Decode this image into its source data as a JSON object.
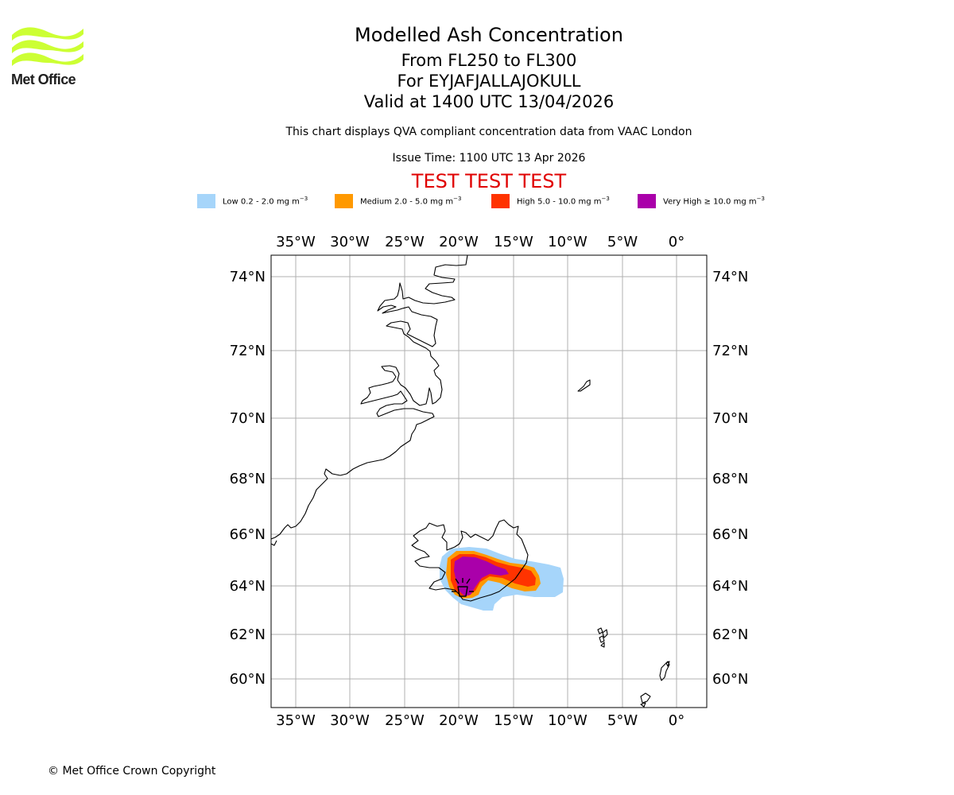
{
  "logo": {
    "text": "Met Office",
    "wave_color": "#ccff33"
  },
  "header": {
    "title": "Modelled Ash Concentration",
    "levels": "From FL250 to FL300",
    "volcano": "For EYJAFJALLAJOKULL",
    "valid": "Valid at 1400 UTC 13/04/2026",
    "compliance": "This chart displays QVA compliant concentration data from VAAC London",
    "issue_time": "Issue Time: 1100 UTC 13 Apr 2026",
    "test_banner": "TEST TEST TEST",
    "test_color": "#e00000"
  },
  "legend": [
    {
      "label": "Low 0.2 - 2.0 mg m",
      "exp": "−3",
      "color": "#a6d5fa"
    },
    {
      "label": "Medium 2.0 - 5.0 mg m",
      "exp": "−3",
      "color": "#ff9900"
    },
    {
      "label": "High 5.0 - 10.0 mg m",
      "exp": "−3",
      "color": "#ff3300"
    },
    {
      "label": "Very High  ≥  10.0 mg m",
      "exp": "−3",
      "color": "#aa00aa"
    }
  ],
  "map": {
    "lon_labels": [
      "35°W",
      "30°W",
      "25°W",
      "20°W",
      "15°W",
      "10°W",
      "5°W",
      "0°"
    ],
    "lat_labels": [
      "74°N",
      "72°N",
      "70°N",
      "68°N",
      "66°N",
      "64°N",
      "62°N",
      "60°N"
    ],
    "grid_color": "#b0b0b0",
    "coast_color": "#000000"
  },
  "footer": {
    "copyright": "© Met Office Crown Copyright"
  }
}
